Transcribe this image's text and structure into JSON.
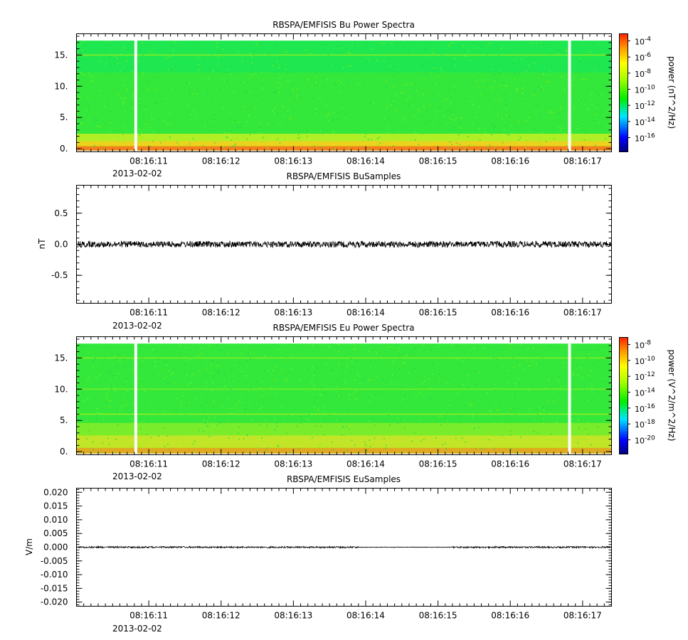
{
  "chart_data": [
    {
      "type": "heatmap",
      "title": "RBSPA/EMFISIS  Bu Power Spectra",
      "ylabel": "",
      "y_ticks": [
        "0.",
        "5.",
        "10.",
        "15."
      ],
      "ylim": [
        -0.5,
        18.4
      ],
      "x_ticks": [
        "08:16:11",
        "08:16:12",
        "08:16:13",
        "08:16:14",
        "08:16:15",
        "08:16:16",
        "08:16:17"
      ],
      "date_label": "2013-02-02",
      "colorbar_label": "power (nT^2/Hz)",
      "colorbar_ticks": [
        "-4",
        "-6",
        "-8",
        "-10",
        "-12",
        "-14",
        "-16"
      ],
      "data_gaps": [
        "08:16:10.8",
        "08:16:16.8"
      ]
    },
    {
      "type": "line",
      "title": "RBSPA/EMFISIS  BuSamples",
      "ylabel": "nT",
      "y_ticks": [
        "0.5",
        "0.0",
        "-0.5"
      ],
      "ylim": [
        -0.95,
        0.95
      ],
      "x_ticks": [
        "08:16:11",
        "08:16:12",
        "08:16:13",
        "08:16:14",
        "08:16:15",
        "08:16:16",
        "08:16:17"
      ],
      "date_label": "2013-02-02",
      "noise_amplitude": 0.05
    },
    {
      "type": "heatmap",
      "title": "RBSPA/EMFISIS  Eu Power Spectra",
      "ylabel": "",
      "y_ticks": [
        "0.",
        "5.",
        "10.",
        "15."
      ],
      "ylim": [
        -0.5,
        18.4
      ],
      "x_ticks": [
        "08:16:11",
        "08:16:12",
        "08:16:13",
        "08:16:14",
        "08:16:15",
        "08:16:16",
        "08:16:17"
      ],
      "date_label": "2013-02-02",
      "colorbar_label": "power (V^2/m^2/Hz)",
      "colorbar_ticks": [
        "-8",
        "-10",
        "-12",
        "-14",
        "-16",
        "-18",
        "-20"
      ],
      "data_gaps": [
        "08:16:10.8",
        "08:16:16.8"
      ]
    },
    {
      "type": "line",
      "title": "RBSPA/EMFISIS  EuSamples",
      "ylabel": "V/m",
      "y_ticks": [
        "0.020",
        "0.015",
        "0.010",
        "0.005",
        "0.000",
        "-0.005",
        "-0.010",
        "-0.015",
        "-0.020"
      ],
      "ylim": [
        -0.0215,
        0.0215
      ],
      "x_ticks": [
        "08:16:11",
        "08:16:12",
        "08:16:13",
        "08:16:14",
        "08:16:15",
        "08:16:16",
        "08:16:17"
      ],
      "date_label": "2013-02-02",
      "noise_amplitude": 0.0003
    }
  ]
}
